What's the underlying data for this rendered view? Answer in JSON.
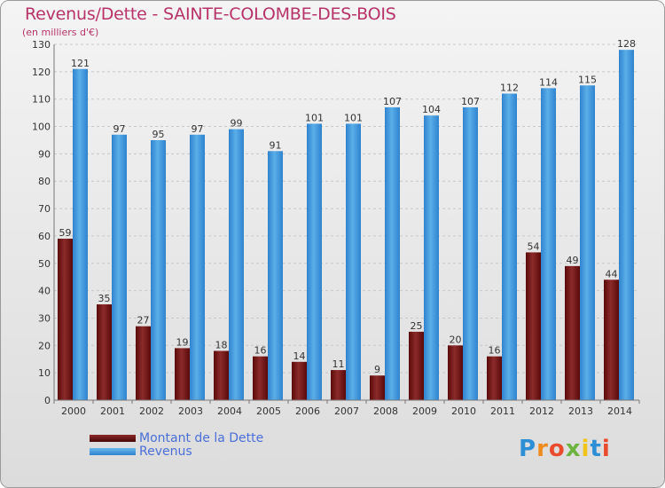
{
  "header": {
    "title": "Revenus/Dette - SAINTE-COLOMBE-DES-BOIS",
    "subtitle": "(en milliers d'€)"
  },
  "logo": {
    "text": "Proxiti"
  },
  "colors": {
    "dette": "#7a1a1a",
    "revenus": "#3f95dc",
    "title": "#b8336a",
    "legend_text": "#4a6fd8"
  },
  "chart_data": {
    "type": "bar",
    "title": "Revenus/Dette - SAINTE-COLOMBE-DES-BOIS",
    "subtitle": "(en milliers d'€)",
    "xlabel": "",
    "ylabel": "",
    "ylim": [
      0,
      130
    ],
    "yticks": [
      0,
      10,
      20,
      30,
      40,
      50,
      60,
      70,
      80,
      90,
      100,
      110,
      120,
      130
    ],
    "grid": true,
    "legend_position": "bottom-left",
    "categories": [
      "2000",
      "2001",
      "2002",
      "2003",
      "2004",
      "2005",
      "2006",
      "2007",
      "2008",
      "2009",
      "2010",
      "2011",
      "2012",
      "2013",
      "2014"
    ],
    "series": [
      {
        "name": "Montant de la Dette",
        "values": [
          59,
          35,
          27,
          19,
          18,
          16,
          14,
          11,
          9,
          25,
          20,
          16,
          54,
          49,
          44
        ]
      },
      {
        "name": "Revenus",
        "values": [
          121,
          97,
          95,
          97,
          99,
          91,
          101,
          101,
          107,
          104,
          107,
          112,
          114,
          115,
          128
        ]
      }
    ]
  }
}
